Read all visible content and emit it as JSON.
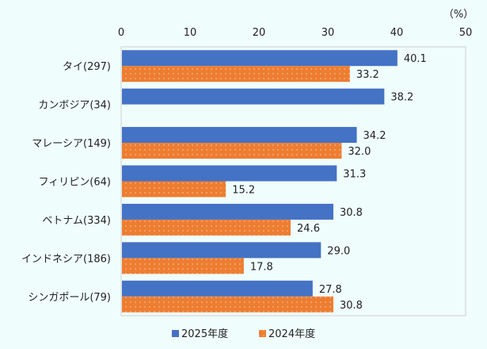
{
  "chart_data": {
    "type": "bar",
    "orientation": "horizontal",
    "unit_label": "（%）",
    "xlim": [
      0,
      50
    ],
    "xticks": [
      0,
      10,
      20,
      30,
      40,
      50
    ],
    "categories": [
      "タイ(297)",
      "カンボジア(34)",
      "マレーシア(149)",
      "フィリピン(64)",
      "ベトナム(334)",
      "インドネシア(186)",
      "シンガポール(79)"
    ],
    "series": [
      {
        "name": "2025年度",
        "color": "#4472c4",
        "values": [
          40.1,
          38.2,
          34.2,
          31.3,
          30.8,
          29.0,
          27.8
        ]
      },
      {
        "name": "2024年度",
        "color": "#ed7d31",
        "pattern": "dotted",
        "values": [
          33.2,
          null,
          32.0,
          15.2,
          24.6,
          17.8,
          30.8
        ]
      }
    ],
    "legend_position": "bottom",
    "grid": false
  }
}
